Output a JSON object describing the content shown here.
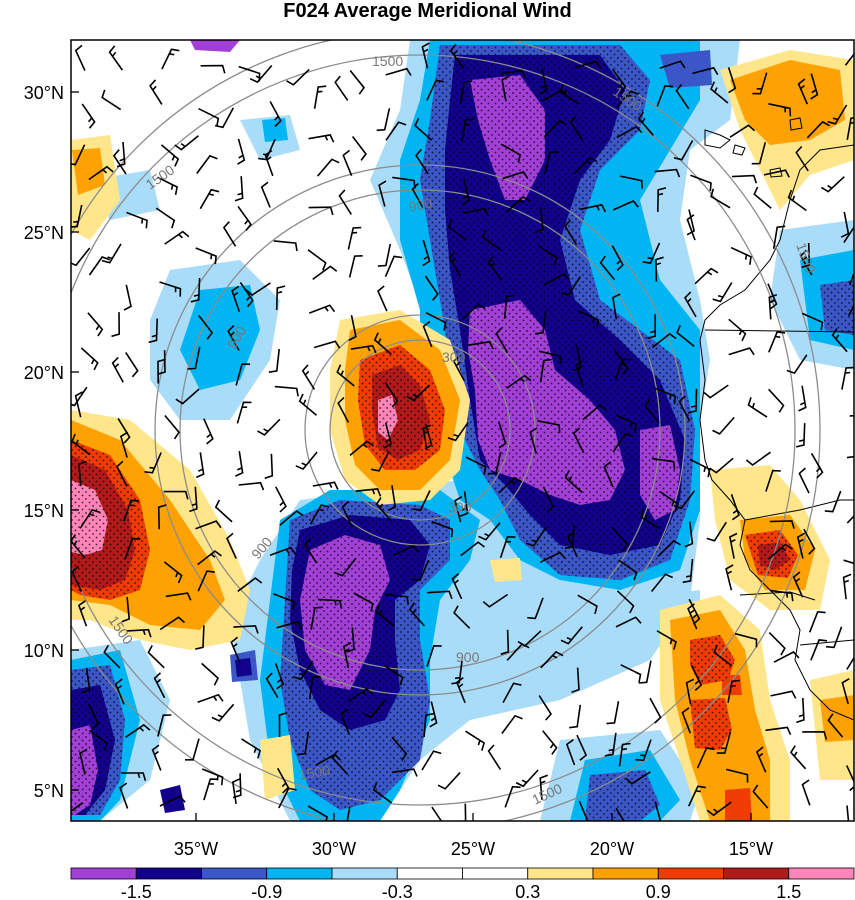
{
  "title": "F024 Average Meridional Wind",
  "lat_labels": [
    "30°N",
    "25°N",
    "20°N",
    "15°N",
    "10°N",
    "5°N"
  ],
  "lon_labels": [
    "35°W",
    "30°W",
    "25°W",
    "20°W",
    "15°W"
  ],
  "ring_labels": [
    "300",
    "300",
    "900",
    "900",
    "900",
    "900",
    "1500",
    "1500",
    "1500",
    "1500",
    "1500",
    "1500",
    "1500"
  ],
  "colorbar": {
    "colors": [
      "#a23fd6",
      "#11018b",
      "#3b56c7",
      "#00b5f1",
      "#a9dcf9",
      "#ffffff",
      "#ffffff",
      "#ffe68a",
      "#fea103",
      "#f03c03",
      "#b01a1a",
      "#ff85b9"
    ],
    "labels": [
      "-1.5",
      "-0.9",
      "-0.3",
      "0.3",
      "0.9",
      "1.5"
    ]
  },
  "colors": {
    "purple": "#a23fd6",
    "navy": "#11018b",
    "blue": "#3b56c7",
    "cyan": "#00b5f1",
    "lightblue": "#a9dcf9",
    "yellow": "#ffe68a",
    "orange": "#fea103",
    "red": "#f03c03",
    "darkred": "#b01a1a",
    "pink": "#ff85b9"
  }
}
